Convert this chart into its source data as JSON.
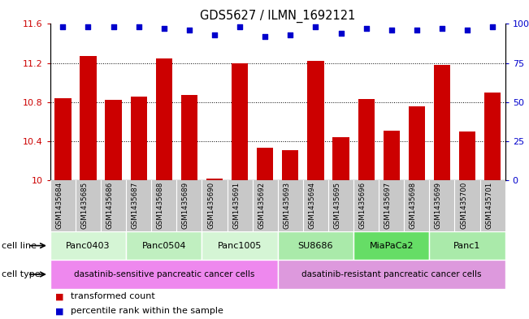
{
  "title": "GDS5627 / ILMN_1692121",
  "samples": [
    "GSM1435684",
    "GSM1435685",
    "GSM1435686",
    "GSM1435687",
    "GSM1435688",
    "GSM1435689",
    "GSM1435690",
    "GSM1435691",
    "GSM1435692",
    "GSM1435693",
    "GSM1435694",
    "GSM1435695",
    "GSM1435696",
    "GSM1435697",
    "GSM1435698",
    "GSM1435699",
    "GSM1435700",
    "GSM1435701"
  ],
  "bar_values": [
    10.84,
    11.27,
    10.82,
    10.86,
    11.25,
    10.87,
    10.02,
    11.2,
    10.33,
    10.31,
    11.22,
    10.44,
    10.83,
    10.51,
    10.76,
    11.18,
    10.5,
    10.9
  ],
  "percentile_values": [
    98,
    98,
    98,
    98,
    97,
    96,
    93,
    98,
    92,
    93,
    98,
    94,
    97,
    96,
    96,
    97,
    96,
    98
  ],
  "bar_color": "#cc0000",
  "dot_color": "#0000cc",
  "ylim_left": [
    10.0,
    11.6
  ],
  "ylim_right": [
    0,
    100
  ],
  "yticks_left": [
    10.0,
    10.4,
    10.8,
    11.2,
    11.6
  ],
  "yticks_right": [
    0,
    25,
    50,
    75,
    100
  ],
  "ytick_labels_left": [
    "10",
    "10.4",
    "10.8",
    "11.2",
    "11.6"
  ],
  "ytick_labels_right": [
    "0",
    "25",
    "50",
    "75",
    "100%"
  ],
  "cell_lines": [
    {
      "name": "Panc0403",
      "start": 0,
      "end": 2
    },
    {
      "name": "Panc0504",
      "start": 3,
      "end": 5
    },
    {
      "name": "Panc1005",
      "start": 6,
      "end": 8
    },
    {
      "name": "SU8686",
      "start": 9,
      "end": 11
    },
    {
      "name": "MiaPaCa2",
      "start": 12,
      "end": 14
    },
    {
      "name": "Panc1",
      "start": 15,
      "end": 17
    }
  ],
  "cl_colors": [
    "#d5f5d5",
    "#c0efc0",
    "#d5f5d5",
    "#aaeaaa",
    "#66dd66",
    "#aaeaaa"
  ],
  "cell_type_groups": [
    {
      "name": "dasatinib-sensitive pancreatic cancer cells",
      "start": 0,
      "end": 8
    },
    {
      "name": "dasatinib-resistant pancreatic cancer cells",
      "start": 9,
      "end": 17
    }
  ],
  "ct_colors": [
    "#ee88ee",
    "#dd99dd"
  ],
  "legend_items": [
    {
      "label": "transformed count",
      "color": "#cc0000"
    },
    {
      "label": "percentile rank within the sample",
      "color": "#0000cc"
    }
  ],
  "xlabel_bg_color": "#c8c8c8",
  "grid_color": "#000000",
  "fig_width": 6.51,
  "fig_height": 3.93,
  "dpi": 100
}
